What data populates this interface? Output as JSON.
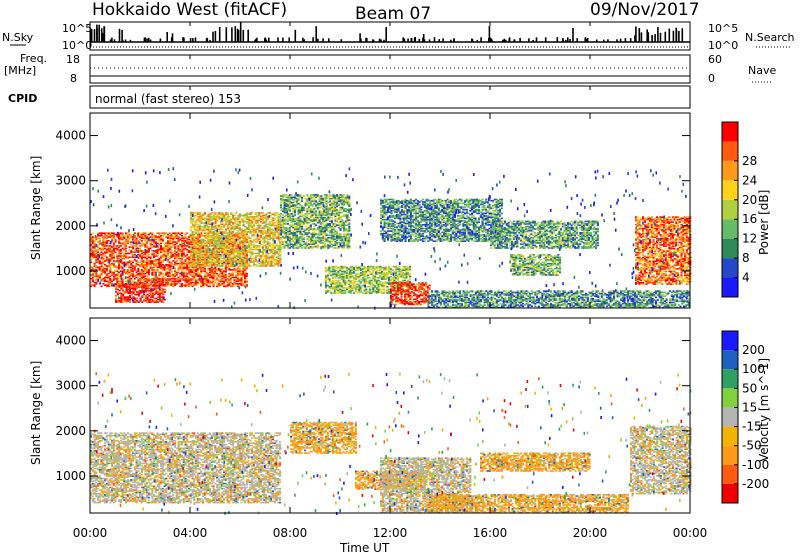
{
  "header": {
    "title": "Hokkaido West (fitACF)",
    "beam": "Beam 07",
    "date": "09/Nov/2017"
  },
  "params": {
    "nsky_label": "N.Sky",
    "nsearch_label": "N.Search",
    "freq_label_1": "Freq.",
    "freq_label_2": "[MHz]",
    "nave_label": "Nave",
    "cpid_label": "CPID",
    "cpid_text": "normal (fast stereo) 153",
    "noise_ticks": [
      "10^5",
      "10^0"
    ],
    "freq_ticks": [
      "18",
      "8"
    ],
    "nave_ticks": [
      "60",
      "0"
    ]
  },
  "colors": {
    "power": [
      "#1a1aff",
      "#2448c8",
      "#2e8b57",
      "#66bb66",
      "#b0d040",
      "#ffd21a",
      "#ff9a1a",
      "#ff5a10",
      "#ff0000"
    ],
    "velocity": [
      "#ee0000",
      "#ff5a10",
      "#ff9a1a",
      "#f2b400",
      "#b4b4b4",
      "#80d040",
      "#2ea060",
      "#2060c0",
      "#1a1aff"
    ]
  },
  "chart_data": [
    {
      "type": "heatmap",
      "name": "power",
      "ylabel": "Slant Range [km]",
      "xlabel": "Time UT",
      "x_ticks": [
        "00:00",
        "04:00",
        "08:00",
        "12:00",
        "16:00",
        "20:00",
        "00:00"
      ],
      "y_ticks": [
        1000,
        2000,
        3000,
        4000
      ],
      "ylim": [
        180,
        4500
      ],
      "xlim_hours": [
        0,
        24
      ],
      "colorbar_label": "Power [dB]",
      "colorbar_ticks": [
        4,
        8,
        12,
        16,
        20,
        24,
        28
      ],
      "regions": [
        {
          "t0": 0.0,
          "t1": 6.3,
          "r0": 650,
          "r1": 1850,
          "level": 0.85
        },
        {
          "t0": 1.0,
          "t1": 3.0,
          "r0": 300,
          "r1": 700,
          "level": 0.95
        },
        {
          "t0": 4.0,
          "t1": 7.6,
          "r0": 1100,
          "r1": 2300,
          "level": 0.6
        },
        {
          "t0": 7.6,
          "t1": 10.4,
          "r0": 1500,
          "r1": 2700,
          "level": 0.4
        },
        {
          "t0": 9.4,
          "t1": 12.8,
          "r0": 500,
          "r1": 1100,
          "level": 0.45
        },
        {
          "t0": 12.0,
          "t1": 13.6,
          "r0": 250,
          "r1": 750,
          "level": 0.9
        },
        {
          "t0": 11.6,
          "t1": 16.5,
          "r0": 1650,
          "r1": 2600,
          "level": 0.3
        },
        {
          "t0": 16.0,
          "t1": 20.3,
          "r0": 1500,
          "r1": 2100,
          "level": 0.35
        },
        {
          "t0": 16.8,
          "t1": 18.8,
          "r0": 900,
          "r1": 1350,
          "level": 0.4
        },
        {
          "t0": 21.8,
          "t1": 24.0,
          "r0": 700,
          "r1": 2200,
          "level": 0.8
        },
        {
          "t0": 13.5,
          "t1": 24.0,
          "r0": 180,
          "r1": 550,
          "level": 0.3
        }
      ]
    },
    {
      "type": "heatmap",
      "name": "velocity",
      "ylabel": "Slant Range [km]",
      "xlabel": "Time UT",
      "x_ticks": [
        "00:00",
        "04:00",
        "08:00",
        "12:00",
        "16:00",
        "20:00",
        "00:00"
      ],
      "y_ticks": [
        1000,
        2000,
        3000,
        4000
      ],
      "ylim": [
        180,
        4500
      ],
      "xlim_hours": [
        0,
        24
      ],
      "colorbar_label": "Velocity [m s^-1]",
      "colorbar_ticks": [
        -200,
        -100,
        -50,
        -15,
        15,
        50,
        100,
        200
      ],
      "regions": [
        {
          "t0": 0.0,
          "t1": 7.6,
          "r0": 400,
          "r1": 1950,
          "level": 0.5
        },
        {
          "t0": 8.0,
          "t1": 10.6,
          "r0": 1500,
          "r1": 2200,
          "level": 0.3
        },
        {
          "t0": 10.6,
          "t1": 13.4,
          "r0": 700,
          "r1": 1100,
          "level": 0.35
        },
        {
          "t0": 11.6,
          "t1": 15.2,
          "r0": 180,
          "r1": 1400,
          "level": 0.5
        },
        {
          "t0": 13.5,
          "t1": 21.5,
          "r0": 180,
          "r1": 600,
          "level": 0.35
        },
        {
          "t0": 15.6,
          "t1": 20.0,
          "r0": 1100,
          "r1": 1500,
          "level": 0.3
        },
        {
          "t0": 21.6,
          "t1": 24.0,
          "r0": 600,
          "r1": 2100,
          "level": 0.5
        }
      ]
    }
  ]
}
